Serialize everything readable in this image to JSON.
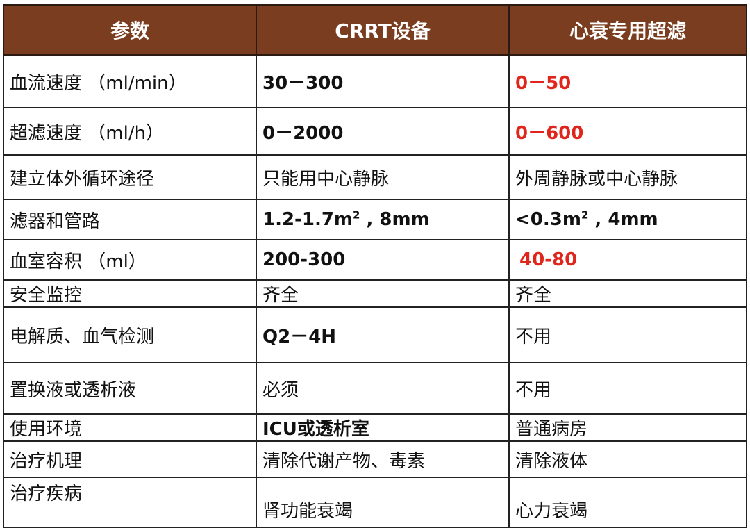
{
  "table": {
    "headers": [
      "参数",
      "CRRT设备",
      "心衰专用超滤"
    ],
    "rows": [
      {
        "param": "血流速度 （ml/min）",
        "crrt": "30－300",
        "cardiac": "0－50"
      },
      {
        "param": "超滤速度 （ml/h）",
        "crrt": "0－2000",
        "cardiac": "0－600"
      },
      {
        "param": "建立体外循环途径",
        "crrt": "只能用中心静脉",
        "cardiac": "外周静脉或中心静脉"
      },
      {
        "param": "滤器和管路",
        "crrt_pre": "1.2-1.7m",
        "crrt_sup": "2",
        "crrt_post": " , 8mm",
        "cardiac_pre": "<0.3m",
        "cardiac_sup": "2",
        "cardiac_post": "  , 4mm"
      },
      {
        "param": "血室容积 （ml）",
        "crrt": "200-300",
        "cardiac": "40-80"
      },
      {
        "param": "安全监控",
        "crrt": "齐全",
        "cardiac": "齐全"
      },
      {
        "param": "电解质、血气检测",
        "crrt": "Q2－4H",
        "cardiac": "不用"
      },
      {
        "param": "置换液或透析液",
        "crrt": "必须",
        "cardiac": "不用"
      },
      {
        "param": "使用环境",
        "crrt": "ICU或透析室",
        "cardiac": "普通病房"
      },
      {
        "param": "治疗机理",
        "crrt": "清除代谢产物、毒素",
        "cardiac": "清除液体"
      },
      {
        "param": "治疗疾病",
        "crrt": "肾功能衰竭",
        "cardiac": "心力衰竭"
      }
    ]
  },
  "colors": {
    "header_bg": "#7b3d1f",
    "header_text": "#ffffff",
    "highlight_text": "#e0261c",
    "border": "#222222"
  }
}
